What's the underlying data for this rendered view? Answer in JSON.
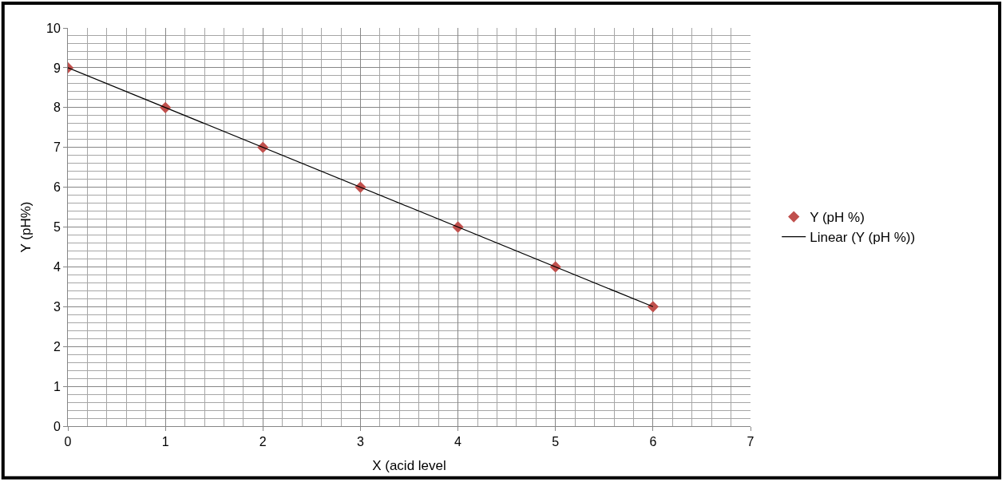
{
  "chart_data": {
    "type": "scatter",
    "xlabel": "X (acid level",
    "ylabel": "Y (pH%)",
    "x": [
      0,
      1,
      2,
      3,
      4,
      5,
      6
    ],
    "series": [
      {
        "name": "Y (pH %)",
        "color": "#c0504d",
        "marker": "diamond",
        "values": [
          9,
          8,
          7,
          6,
          5,
          4,
          3
        ]
      },
      {
        "name": "Linear (Y (pH %))",
        "type": "line",
        "color": "#000000",
        "marker": "none",
        "line_style": "solid",
        "x": [
          0,
          6
        ],
        "values": [
          9,
          3
        ]
      }
    ],
    "xlim": [
      0,
      7
    ],
    "xticks": [
      0,
      1,
      2,
      3,
      4,
      5,
      6,
      7
    ],
    "ylim": [
      0,
      10
    ],
    "yticks": [
      0,
      1,
      2,
      3,
      4,
      5,
      6,
      7,
      8,
      9,
      10
    ],
    "grid": true,
    "legend": "right"
  }
}
